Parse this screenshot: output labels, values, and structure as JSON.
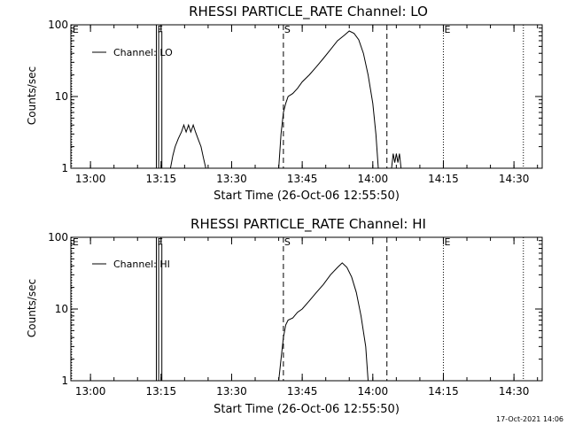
{
  "footer": {
    "timestamp": "17-Oct-2021 14:06"
  },
  "chart_data": [
    {
      "type": "line",
      "title": "RHESSI PARTICLE_RATE Channel: LO",
      "xlabel": "Start Time (26-Oct-06 12:55:50)",
      "ylabel": "Counts/sec",
      "legend": {
        "label": "Channel: LO",
        "placement": "top-left"
      },
      "y_scale": "log",
      "ylim": [
        1,
        100
      ],
      "y_ticks": [
        {
          "value": 1,
          "label": "1"
        },
        {
          "value": 10,
          "label": "10"
        },
        {
          "value": 100,
          "label": "100"
        }
      ],
      "xlim": [
        "12:55:50",
        "14:36:00"
      ],
      "x_ticks": [
        "13:00",
        "13:15",
        "13:30",
        "13:45",
        "14:00",
        "14:15",
        "14:30"
      ],
      "events": [
        {
          "label": "E",
          "time": "12:56:00",
          "style": "dotted"
        },
        {
          "label": "F",
          "time": "13:14:00",
          "style": "solid"
        },
        {
          "label": "S",
          "time": "13:41:00",
          "style": "dashed"
        },
        {
          "label": "",
          "time": "14:03:00",
          "style": "dashed"
        },
        {
          "label": "E",
          "time": "14:15:00",
          "style": "dotted"
        },
        {
          "label": "",
          "time": "14:32:00",
          "style": "dotted"
        }
      ],
      "series": [
        {
          "name": "Channel: LO",
          "segments": [
            [
              [
                "13:14:30",
                1
              ],
              [
                "13:14:30",
                80
              ],
              [
                "13:15:10",
                80
              ],
              [
                "13:15:10",
                1
              ]
            ],
            [
              [
                "13:17:00",
                1
              ],
              [
                "13:17:30",
                1.5
              ],
              [
                "13:18:00",
                2
              ],
              [
                "13:18:40",
                2.6
              ],
              [
                "13:19:20",
                3.2
              ],
              [
                "13:19:50",
                4
              ],
              [
                "13:20:20",
                3.2
              ],
              [
                "13:20:50",
                4
              ],
              [
                "13:21:20",
                3.2
              ],
              [
                "13:21:50",
                4
              ],
              [
                "13:22:20",
                3.2
              ],
              [
                "13:22:50",
                2.6
              ],
              [
                "13:23:30",
                2
              ],
              [
                "13:24:00",
                1.4
              ],
              [
                "13:24:30",
                1
              ]
            ],
            [
              [
                "13:40:00",
                1
              ],
              [
                "13:40:30",
                3
              ],
              [
                "13:41:00",
                6
              ],
              [
                "13:41:30",
                8
              ],
              [
                "13:42:00",
                10
              ],
              [
                "13:43:00",
                11
              ],
              [
                "13:44:00",
                13
              ],
              [
                "13:45:00",
                16
              ],
              [
                "13:46:30",
                20
              ],
              [
                "13:48:00",
                26
              ],
              [
                "13:49:30",
                34
              ],
              [
                "13:51:00",
                45
              ],
              [
                "13:52:30",
                60
              ],
              [
                "13:54:00",
                72
              ],
              [
                "13:55:00",
                82
              ],
              [
                "13:56:00",
                76
              ],
              [
                "13:57:00",
                62
              ],
              [
                "13:58:00",
                40
              ],
              [
                "13:59:00",
                20
              ],
              [
                "14:00:00",
                8
              ],
              [
                "14:00:40",
                3
              ],
              [
                "14:01:10",
                1
              ]
            ],
            [
              [
                "14:04:00",
                1
              ],
              [
                "14:04:20",
                1.6
              ],
              [
                "14:04:40",
                1.2
              ],
              [
                "14:05:00",
                1.6
              ],
              [
                "14:05:20",
                1.2
              ],
              [
                "14:05:40",
                1.6
              ],
              [
                "14:06:00",
                1
              ]
            ]
          ]
        }
      ]
    },
    {
      "type": "line",
      "title": "RHESSI PARTICLE_RATE Channel: HI",
      "xlabel": "Start Time (26-Oct-06 12:55:50)",
      "ylabel": "Counts/sec",
      "legend": {
        "label": "Channel: HI",
        "placement": "top-left"
      },
      "y_scale": "log",
      "ylim": [
        1,
        100
      ],
      "y_ticks": [
        {
          "value": 1,
          "label": "1"
        },
        {
          "value": 10,
          "label": "10"
        },
        {
          "value": 100,
          "label": "100"
        }
      ],
      "xlim": [
        "12:55:50",
        "14:36:00"
      ],
      "x_ticks": [
        "13:00",
        "13:15",
        "13:30",
        "13:45",
        "14:00",
        "14:15",
        "14:30"
      ],
      "events": [
        {
          "label": "E",
          "time": "12:56:00",
          "style": "dotted"
        },
        {
          "label": "F",
          "time": "13:14:00",
          "style": "solid"
        },
        {
          "label": "S",
          "time": "13:41:00",
          "style": "dashed"
        },
        {
          "label": "",
          "time": "14:03:00",
          "style": "dashed"
        },
        {
          "label": "E",
          "time": "14:15:00",
          "style": "dotted"
        },
        {
          "label": "",
          "time": "14:32:00",
          "style": "dotted"
        }
      ],
      "series": [
        {
          "name": "Channel: HI",
          "segments": [
            [
              [
                "13:14:30",
                1
              ],
              [
                "13:14:30",
                80
              ],
              [
                "13:15:10",
                80
              ],
              [
                "13:15:10",
                1
              ]
            ],
            [
              [
                "13:40:00",
                1
              ],
              [
                "13:40:30",
                2
              ],
              [
                "13:41:00",
                4
              ],
              [
                "13:41:30",
                6
              ],
              [
                "13:42:00",
                7
              ],
              [
                "13:43:00",
                7.5
              ],
              [
                "13:44:00",
                9
              ],
              [
                "13:45:00",
                10
              ],
              [
                "13:46:30",
                13
              ],
              [
                "13:48:00",
                17
              ],
              [
                "13:49:30",
                22
              ],
              [
                "13:51:00",
                30
              ],
              [
                "13:52:30",
                38
              ],
              [
                "13:53:30",
                44
              ],
              [
                "13:54:30",
                38
              ],
              [
                "13:55:30",
                28
              ],
              [
                "13:56:30",
                17
              ],
              [
                "13:57:30",
                8
              ],
              [
                "13:58:30",
                3
              ],
              [
                "13:59:00",
                1
              ]
            ]
          ]
        }
      ]
    }
  ]
}
